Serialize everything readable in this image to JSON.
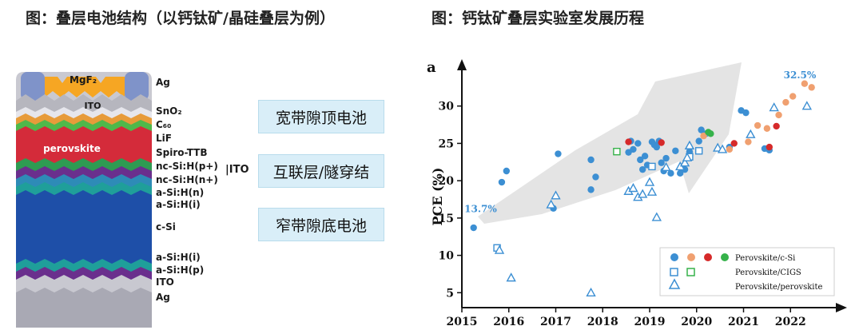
{
  "left_title": "图：叠层电池结构（以钙钛矿/晶硅叠层为例）",
  "right_title": "图：钙钛矿叠层实验室发展历程",
  "stack": {
    "top_contact": "MgF₂",
    "ito_top": "ITO",
    "perovskite": "perovskite",
    "layers": [
      "Ag",
      "SnO₂",
      "C₆₀",
      "LiF",
      "Spiro-TTB",
      "nc-Si:H(p+)",
      "|ITO",
      "nc-Si:H(n+)",
      "a-Si:H(n)",
      "a-Si:H(i)",
      "c-Si",
      "a-Si:H(i)",
      "a-Si:H(p)",
      "ITO",
      "Ag"
    ]
  },
  "boxes": [
    "宽带隙顶电池",
    "互联层/隧穿结",
    "窄带隙底电池"
  ],
  "colors": {
    "blue": "#3c8fd3",
    "orange": "#f0a070",
    "red": "#d62a2a",
    "green": "#36b24a",
    "box_bg": "#d9eef8"
  },
  "chart_data": {
    "type": "scatter",
    "panel_label": "a",
    "ylabel": "PCE (%)",
    "xlim": [
      2015,
      2023
    ],
    "ylim": [
      3,
      35
    ],
    "xticks": [
      "2015",
      "2016",
      "2017",
      "2018",
      "2019",
      "2020",
      "2021",
      "2022"
    ],
    "yticks": [
      "5",
      "10",
      "15",
      "20",
      "25",
      "30"
    ],
    "annotations": [
      {
        "text": "13.7%",
        "x": 2015.4,
        "y": 15.8
      },
      {
        "text": "32.5%",
        "x": 2022.2,
        "y": 33.7
      }
    ],
    "legend": {
      "position": "bottom-right",
      "entries": [
        "Perovskite/c-Si",
        "Perovskite/CIGS",
        "Perovskite/perovskite"
      ]
    },
    "series": [
      {
        "marker": "circle-blue",
        "points": [
          [
            2015.25,
            13.7
          ],
          [
            2015.85,
            19.8
          ],
          [
            2015.95,
            21.3
          ],
          [
            2016.95,
            16.3
          ],
          [
            2017.05,
            23.6
          ],
          [
            2017.75,
            22.8
          ],
          [
            2017.85,
            20.5
          ],
          [
            2017.75,
            18.8
          ],
          [
            2018.55,
            23.8
          ],
          [
            2018.6,
            25.3
          ],
          [
            2018.65,
            24.2
          ],
          [
            2018.75,
            25
          ],
          [
            2018.8,
            22.8
          ],
          [
            2018.85,
            21.5
          ],
          [
            2018.9,
            23.3
          ],
          [
            2018.95,
            22.1
          ],
          [
            2019.05,
            25.2
          ],
          [
            2019.1,
            24.8
          ],
          [
            2019.15,
            24.5
          ],
          [
            2019.2,
            25.3
          ],
          [
            2019.25,
            22.4
          ],
          [
            2019.3,
            21.3
          ],
          [
            2019.35,
            23
          ],
          [
            2019.45,
            21
          ],
          [
            2019.55,
            24
          ],
          [
            2019.65,
            21
          ],
          [
            2019.75,
            21.5
          ],
          [
            2019.85,
            23.9
          ],
          [
            2020.05,
            25.3
          ],
          [
            2020.1,
            26.8
          ],
          [
            2020.2,
            26.3
          ],
          [
            2020.7,
            24.5
          ],
          [
            2020.95,
            29.4
          ],
          [
            2021.05,
            29.1
          ],
          [
            2021.45,
            24.3
          ],
          [
            2021.55,
            24.1
          ]
        ]
      },
      {
        "marker": "circle-orange",
        "points": [
          [
            2020.15,
            26
          ],
          [
            2020.7,
            24.2
          ],
          [
            2021.1,
            25.2
          ],
          [
            2021.3,
            27.4
          ],
          [
            2021.5,
            27
          ],
          [
            2021.75,
            28.8
          ],
          [
            2021.9,
            30.5
          ],
          [
            2022.05,
            31.3
          ],
          [
            2022.3,
            33
          ],
          [
            2022.45,
            32.5
          ]
        ]
      },
      {
        "marker": "circle-red",
        "points": [
          [
            2018.55,
            25.2
          ],
          [
            2019.25,
            25.1
          ],
          [
            2020.8,
            25
          ],
          [
            2021.55,
            24.5
          ],
          [
            2021.7,
            27.3
          ]
        ]
      },
      {
        "marker": "circle-green",
        "points": [
          [
            2020.25,
            26.5
          ],
          [
            2020.3,
            26.3
          ]
        ]
      },
      {
        "marker": "square-blue",
        "points": [
          [
            2015.75,
            11
          ],
          [
            2019.05,
            21.9
          ],
          [
            2019.85,
            23.2
          ],
          [
            2020.05,
            24
          ]
        ]
      },
      {
        "marker": "square-green",
        "points": [
          [
            2018.3,
            23.9
          ]
        ]
      },
      {
        "marker": "triangle-blue",
        "points": [
          [
            2015.8,
            10.7
          ],
          [
            2016.05,
            7
          ],
          [
            2016.9,
            16.8
          ],
          [
            2017.0,
            18
          ],
          [
            2017.75,
            5
          ],
          [
            2018.55,
            18.6
          ],
          [
            2018.65,
            19
          ],
          [
            2018.75,
            17.8
          ],
          [
            2018.85,
            18.2
          ],
          [
            2019.0,
            19.8
          ],
          [
            2019.05,
            18.5
          ],
          [
            2019.15,
            15.1
          ],
          [
            2019.35,
            21.8
          ],
          [
            2019.65,
            21.9
          ],
          [
            2019.75,
            22.4
          ],
          [
            2019.8,
            23.1
          ],
          [
            2019.85,
            24.7
          ],
          [
            2020.45,
            24.4
          ],
          [
            2020.55,
            24.2
          ],
          [
            2021.15,
            26.2
          ],
          [
            2021.65,
            29.8
          ],
          [
            2022.35,
            30
          ]
        ]
      }
    ]
  }
}
